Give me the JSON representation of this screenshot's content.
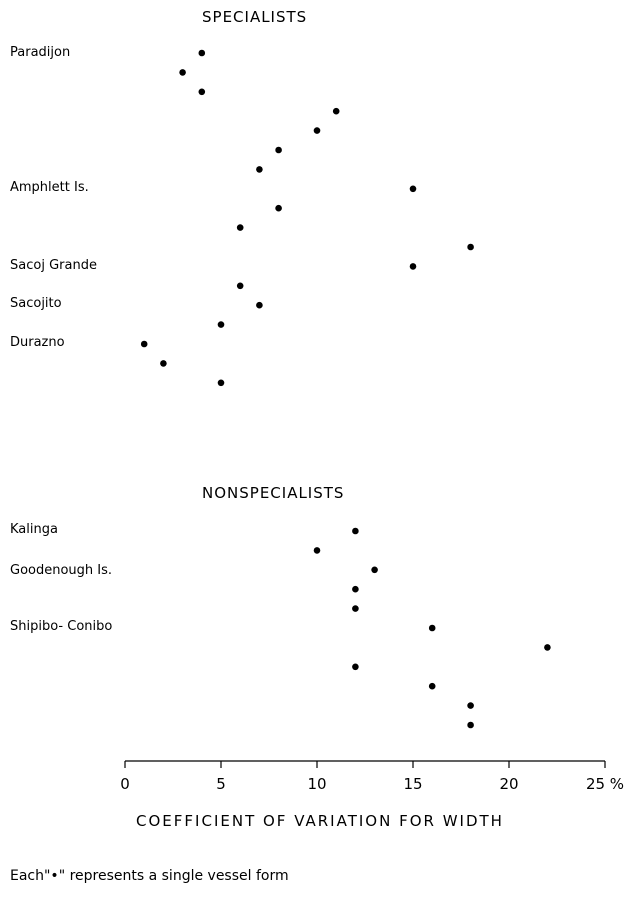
{
  "chart_data": {
    "type": "scatter",
    "groups": [
      {
        "title": "SPECIALISTS",
        "labels": [
          "Paradijon",
          "Amphlett Is.",
          "Sacoj Grande",
          "Sacojito",
          "Durazno"
        ],
        "values": [
          4,
          3,
          4,
          11,
          10,
          8,
          7,
          15,
          8,
          6,
          18,
          15,
          6,
          7,
          5,
          1,
          2,
          5
        ]
      },
      {
        "title": "NONSPECIALISTS",
        "labels": [
          "Kalinga",
          "Goodenough Is.",
          "Shipibo- Conibo"
        ],
        "values": [
          12,
          10,
          13,
          12,
          12,
          16,
          22,
          12,
          16,
          18,
          18
        ]
      }
    ],
    "x_ticks": [
      "0",
      "5",
      "10",
      "15",
      "20",
      "25 %"
    ],
    "xlim": [
      0,
      25
    ],
    "xlabel": "COEFFICIENT OF VARIATION FOR WIDTH",
    "note": "Each\"•\" represents a single vessel form",
    "grid": false,
    "dot_color": "#000000"
  }
}
